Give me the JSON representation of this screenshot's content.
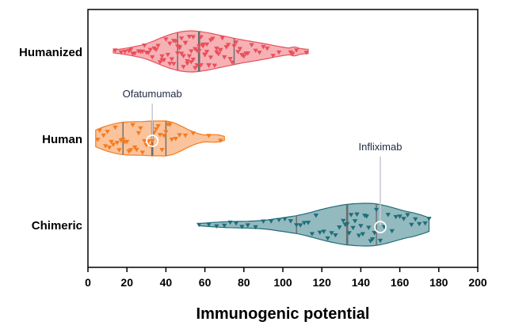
{
  "chart_data": {
    "type": "violin",
    "xlabel": "Immunogenic potential",
    "xlim": [
      0,
      200
    ],
    "xticks": [
      0,
      20,
      40,
      60,
      80,
      100,
      120,
      140,
      160,
      180,
      200
    ],
    "groups": [
      {
        "category": "Humanized",
        "color": "#e8505b",
        "fill": "#f4a3a8",
        "range": [
          13,
          113
        ],
        "quartiles": [
          46,
          57,
          75
        ],
        "median": 57,
        "density": [
          [
            13,
            0.07
          ],
          [
            18,
            0.13
          ],
          [
            23,
            0.22
          ],
          [
            28,
            0.32
          ],
          [
            33,
            0.48
          ],
          [
            38,
            0.68
          ],
          [
            43,
            0.85
          ],
          [
            48,
            0.96
          ],
          [
            53,
            1.0
          ],
          [
            58,
            0.96
          ],
          [
            63,
            0.88
          ],
          [
            68,
            0.78
          ],
          [
            73,
            0.68
          ],
          [
            78,
            0.58
          ],
          [
            83,
            0.5
          ],
          [
            88,
            0.42
          ],
          [
            93,
            0.33
          ],
          [
            98,
            0.24
          ],
          [
            103,
            0.17
          ],
          [
            106,
            0.22
          ],
          [
            109,
            0.14
          ],
          [
            113,
            0.1
          ]
        ],
        "points": [
          14,
          17,
          19,
          21,
          22,
          23,
          24,
          26,
          27,
          28,
          29,
          30,
          31,
          32,
          33,
          34,
          35,
          36,
          37,
          38,
          38,
          39,
          40,
          41,
          42,
          42,
          43,
          44,
          44,
          45,
          46,
          46,
          47,
          47,
          48,
          48,
          49,
          49,
          50,
          50,
          51,
          51,
          52,
          52,
          53,
          53,
          54,
          54,
          55,
          55,
          56,
          56,
          57,
          57,
          58,
          58,
          59,
          59,
          60,
          60,
          61,
          61,
          62,
          62,
          63,
          63,
          64,
          65,
          66,
          66,
          67,
          68,
          68,
          69,
          70,
          71,
          72,
          73,
          74,
          75,
          76,
          77,
          78,
          79,
          80,
          81,
          82,
          84,
          86,
          88,
          90,
          92,
          95,
          98,
          104,
          105,
          107,
          112
        ]
      },
      {
        "category": "Human",
        "color": "#f47b20",
        "fill": "#f9b98a",
        "range": [
          4,
          70
        ],
        "quartiles": [
          18,
          33,
          40
        ],
        "median": 33,
        "density": [
          [
            4,
            0.48
          ],
          [
            8,
            0.66
          ],
          [
            12,
            0.8
          ],
          [
            16,
            0.9
          ],
          [
            20,
            0.95
          ],
          [
            24,
            0.96
          ],
          [
            28,
            0.97
          ],
          [
            33,
            1.0
          ],
          [
            37,
            1.0
          ],
          [
            40,
            1.0
          ],
          [
            44,
            0.9
          ],
          [
            48,
            0.7
          ],
          [
            52,
            0.48
          ],
          [
            56,
            0.3
          ],
          [
            60,
            0.2
          ],
          [
            64,
            0.22
          ],
          [
            67,
            0.2
          ],
          [
            70,
            0.12
          ]
        ],
        "points": [
          5,
          6,
          8,
          9,
          10,
          11,
          12,
          13,
          14,
          15,
          16,
          17,
          18,
          19,
          20,
          21,
          22,
          23,
          24,
          25,
          26,
          27,
          28,
          29,
          30,
          31,
          32,
          33,
          34,
          35,
          36,
          37,
          38,
          39,
          40,
          41,
          42,
          43,
          45,
          47,
          50,
          54,
          62,
          68
        ],
        "highlight": {
          "label": "Ofatumumab",
          "x": 33
        }
      },
      {
        "category": "Chimeric",
        "color": "#1f6e7a",
        "fill": "#80aeb4",
        "range": [
          57,
          175
        ],
        "quartiles": [
          107,
          133,
          148
        ],
        "median": 133,
        "density": [
          [
            57,
            0.05
          ],
          [
            62,
            0.09
          ],
          [
            67,
            0.12
          ],
          [
            72,
            0.14
          ],
          [
            77,
            0.15
          ],
          [
            82,
            0.16
          ],
          [
            87,
            0.18
          ],
          [
            92,
            0.22
          ],
          [
            97,
            0.28
          ],
          [
            102,
            0.35
          ],
          [
            107,
            0.42
          ],
          [
            112,
            0.52
          ],
          [
            117,
            0.64
          ],
          [
            122,
            0.76
          ],
          [
            127,
            0.86
          ],
          [
            132,
            0.94
          ],
          [
            137,
            0.98
          ],
          [
            142,
            1.0
          ],
          [
            147,
            0.98
          ],
          [
            152,
            0.9
          ],
          [
            157,
            0.78
          ],
          [
            162,
            0.65
          ],
          [
            167,
            0.55
          ],
          [
            172,
            0.42
          ],
          [
            175,
            0.32
          ]
        ],
        "points": [
          57,
          62,
          66,
          70,
          73,
          76,
          79,
          82,
          86,
          90,
          94,
          98,
          101,
          104,
          107,
          109,
          111,
          113,
          115,
          117,
          119,
          121,
          123,
          125,
          127,
          129,
          131,
          132,
          133,
          134,
          135,
          136,
          137,
          138,
          139,
          140,
          141,
          142,
          143,
          144,
          145,
          146,
          147,
          148,
          150,
          152,
          154,
          156,
          158,
          160,
          162,
          164,
          166,
          168,
          170,
          173,
          175
        ],
        "highlight": {
          "label": "Infliximab",
          "x": 150
        }
      }
    ],
    "annotations": [
      {
        "text": "Ofatumumab",
        "target": "Human",
        "x": 33
      },
      {
        "text": "Infliximab",
        "target": "Chimeric",
        "x": 150
      }
    ]
  }
}
